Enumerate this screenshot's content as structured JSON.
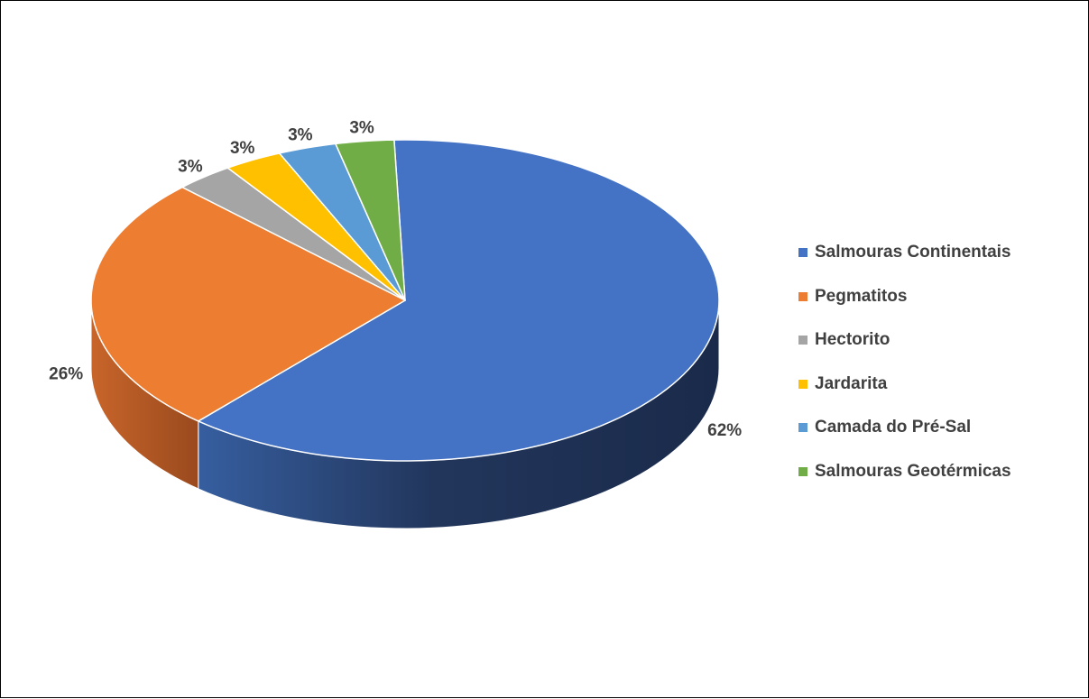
{
  "chart_data": {
    "type": "pie",
    "title": "",
    "legend_position": "right",
    "three_d": true,
    "slices": [
      {
        "label": "Salmouras Continentais",
        "value": 62,
        "value_label": "62%",
        "color": "#4472C4"
      },
      {
        "label": "Pegmatitos",
        "value": 26,
        "value_label": "26%",
        "color": "#ED7D31"
      },
      {
        "label": "Hectorito",
        "value": 3,
        "value_label": "3%",
        "color": "#A5A5A5"
      },
      {
        "label": "Jardarita",
        "value": 3,
        "value_label": "3%",
        "color": "#FFC000"
      },
      {
        "label": "Camada do Pré-Sal",
        "value": 3,
        "value_label": "3%",
        "color": "#5B9BD5"
      },
      {
        "label": "Salmouras Geotérmicas",
        "value": 3,
        "value_label": "3%",
        "color": "#70AD47"
      }
    ]
  }
}
